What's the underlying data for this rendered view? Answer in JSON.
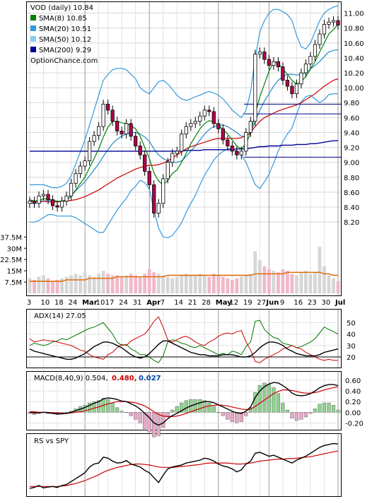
{
  "chart_data": [
    {
      "type": "candlestick",
      "ticker_label": "VOD (daily) 10.84",
      "watermark": "OptionChance.com",
      "legend_placement": "top-left",
      "legend": [
        {
          "label": "SMA(8) 10.85",
          "color": "#008000"
        },
        {
          "label": "SMA(20) 10.51",
          "color": "#3399dd"
        },
        {
          "label": "SMA(50) 10.12",
          "color": "#88ccee"
        },
        {
          "label": "SMA(200) 9.29",
          "color": "#000099"
        }
      ],
      "bollinger_color": "#3399dd",
      "sma50_color": "#cc0000",
      "sma200_color": "#000099",
      "price_ticks": [
        "11.00",
        "10.80",
        "10.60",
        "10.40",
        "10.20",
        "10.00",
        "9.80",
        "9.60",
        "9.40",
        "9.20",
        "9.00",
        "8.80",
        "8.60",
        "8.40",
        "8.20"
      ],
      "ylim": [
        8.05,
        11.1
      ],
      "x_labels": [
        "3",
        "10",
        "18",
        "24",
        "Mar",
        "10",
        "17",
        "24",
        "31",
        "Apr",
        "7",
        "14",
        "21",
        "28",
        "May",
        "12",
        "19",
        "27",
        "Jun",
        "9",
        "16",
        "23",
        "30",
        "Jul"
      ],
      "volume_ticks": [
        "37.5M",
        "30M",
        "22.5M",
        "15M",
        "7.5M"
      ],
      "volume_ylim": [
        0,
        40
      ],
      "close": [
        8.48,
        8.45,
        8.55,
        8.57,
        8.5,
        8.42,
        8.4,
        8.48,
        8.55,
        8.72,
        8.85,
        8.95,
        9.02,
        9.28,
        9.36,
        9.48,
        9.78,
        9.7,
        9.55,
        9.42,
        9.38,
        9.52,
        9.35,
        9.22,
        9.1,
        8.88,
        8.7,
        8.32,
        8.45,
        8.78,
        9.0,
        9.12,
        9.15,
        9.38,
        9.48,
        9.52,
        9.55,
        9.62,
        9.7,
        9.68,
        9.52,
        9.45,
        9.3,
        9.22,
        9.15,
        9.1,
        9.15,
        9.4,
        9.55,
        10.45,
        10.48,
        10.38,
        10.3,
        10.35,
        10.28,
        10.1,
        10.02,
        9.92,
        10.05,
        10.2,
        10.32,
        10.42,
        10.58,
        10.72,
        10.85,
        10.88,
        10.9,
        10.84
      ],
      "volume": [
        10,
        9,
        11,
        12,
        10,
        8,
        9,
        10,
        11,
        12,
        13,
        12,
        14,
        12,
        11,
        13,
        15,
        13,
        12,
        12,
        11,
        12,
        13,
        12,
        11,
        13,
        16,
        14,
        13,
        12,
        11,
        10,
        11,
        12,
        13,
        12,
        12,
        13,
        12,
        11,
        13,
        12,
        11,
        10,
        9,
        10,
        11,
        12,
        13,
        28,
        22,
        18,
        16,
        15,
        14,
        16,
        15,
        13,
        12,
        14,
        15,
        13,
        14,
        31,
        18,
        12,
        10,
        8
      ],
      "sma8": [
        8.5,
        8.48,
        8.49,
        8.51,
        8.51,
        8.49,
        8.48,
        8.48,
        8.49,
        8.55,
        8.63,
        8.72,
        8.8,
        8.93,
        9.05,
        9.18,
        9.34,
        9.47,
        9.55,
        9.55,
        9.53,
        9.52,
        9.49,
        9.45,
        9.35,
        9.2,
        9.05,
        8.86,
        8.75,
        8.7,
        8.76,
        8.85,
        8.9,
        9.0,
        9.12,
        9.25,
        9.35,
        9.45,
        9.52,
        9.56,
        9.54,
        9.5,
        9.44,
        9.38,
        9.3,
        9.22,
        9.18,
        9.25,
        9.4,
        9.65,
        9.88,
        10.05,
        10.22,
        10.35,
        10.33,
        10.25,
        10.18,
        10.1,
        10.05,
        10.08,
        10.15,
        10.25,
        10.35,
        10.48,
        10.6,
        10.72,
        10.78,
        10.85
      ],
      "bb_mid": [
        8.45,
        8.45,
        8.46,
        8.48,
        8.49,
        8.48,
        8.47,
        8.48,
        8.5,
        8.55,
        8.62,
        8.68,
        8.74,
        8.82,
        8.9,
        8.98,
        9.08,
        9.17,
        9.25,
        9.31,
        9.35,
        9.38,
        9.4,
        9.4,
        9.38,
        9.34,
        9.28,
        9.18,
        9.1,
        9.05,
        9.02,
        9.0,
        9.0,
        9.02,
        9.08,
        9.15,
        9.22,
        9.3,
        9.38,
        9.44,
        9.48,
        9.5,
        9.5,
        9.48,
        9.44,
        9.4,
        9.35,
        9.35,
        9.4,
        9.55,
        9.7,
        9.82,
        9.92,
        10.02,
        10.1,
        10.15,
        10.18,
        10.18,
        10.17,
        10.18,
        10.2,
        10.25,
        10.3,
        10.35,
        10.42,
        10.48,
        10.5,
        10.51
      ],
      "bb_up": [
        8.7,
        8.7,
        8.7,
        8.7,
        8.68,
        8.66,
        8.66,
        8.68,
        8.72,
        8.82,
        8.98,
        9.14,
        9.3,
        9.5,
        9.7,
        9.9,
        10.1,
        10.18,
        10.24,
        10.26,
        10.26,
        10.24,
        10.18,
        10.12,
        10.0,
        9.95,
        9.92,
        10.0,
        10.08,
        10.1,
        10.05,
        9.98,
        9.9,
        9.85,
        9.83,
        9.85,
        9.88,
        9.9,
        9.93,
        9.95,
        9.93,
        9.9,
        9.85,
        9.78,
        9.7,
        9.65,
        9.6,
        9.7,
        9.95,
        10.4,
        10.75,
        10.9,
        11.0,
        11.05,
        11.05,
        11.02,
        10.98,
        10.9,
        10.7,
        10.55,
        10.52,
        10.6,
        10.75,
        10.9,
        11.0,
        11.05,
        11.08,
        11.1
      ],
      "bb_lo": [
        8.2,
        8.2,
        8.22,
        8.26,
        8.3,
        8.3,
        8.28,
        8.28,
        8.28,
        8.28,
        8.26,
        8.22,
        8.18,
        8.14,
        8.1,
        8.06,
        8.06,
        8.16,
        8.26,
        8.36,
        8.44,
        8.52,
        8.62,
        8.68,
        8.76,
        8.73,
        8.64,
        8.36,
        8.12,
        8.0,
        7.99,
        8.02,
        8.1,
        8.19,
        8.33,
        8.45,
        8.56,
        8.7,
        8.83,
        8.93,
        9.03,
        9.1,
        9.15,
        9.18,
        9.18,
        9.15,
        9.1,
        9.0,
        8.85,
        8.7,
        8.65,
        8.74,
        8.84,
        8.99,
        9.15,
        9.28,
        9.38,
        9.46,
        9.64,
        9.81,
        9.88,
        9.9,
        9.85,
        9.8,
        9.84,
        9.91,
        9.92,
        9.92
      ],
      "sma50": [
        8.48,
        8.48,
        8.48,
        8.48,
        8.47,
        8.47,
        8.47,
        8.48,
        8.48,
        8.49,
        8.5,
        8.52,
        8.54,
        8.57,
        8.6,
        8.63,
        8.67,
        8.71,
        8.75,
        8.79,
        8.82,
        8.85,
        8.88,
        8.91,
        8.93,
        8.95,
        8.96,
        8.96,
        8.97,
        8.99,
        9.02,
        9.06,
        9.1,
        9.14,
        9.18,
        9.21,
        9.23,
        9.25,
        9.27,
        9.29,
        9.31,
        9.32,
        9.32,
        9.32,
        9.32,
        9.32,
        9.33,
        9.36,
        9.4,
        9.48,
        9.55,
        9.6,
        9.63,
        9.66,
        9.69,
        9.71,
        9.73,
        9.75,
        9.77,
        9.8,
        9.84,
        9.88,
        9.92,
        9.97,
        10.02,
        10.06,
        10.1,
        10.12
      ],
      "sma200": [
        9.15,
        9.15,
        9.15,
        9.15,
        9.15,
        9.15,
        9.15,
        9.15,
        9.15,
        9.15,
        9.15,
        9.15,
        9.15,
        9.15,
        9.15,
        9.15,
        9.15,
        9.15,
        9.15,
        9.15,
        9.15,
        9.15,
        9.15,
        9.15,
        9.15,
        9.15,
        9.15,
        9.15,
        9.15,
        9.15,
        9.15,
        9.15,
        9.15,
        9.15,
        9.16,
        9.16,
        9.16,
        9.16,
        9.17,
        9.17,
        9.17,
        9.17,
        9.17,
        9.17,
        9.17,
        9.18,
        9.18,
        9.18,
        9.19,
        9.2,
        9.21,
        9.21,
        9.22,
        9.22,
        9.22,
        9.23,
        9.23,
        9.23,
        9.24,
        9.24,
        9.24,
        9.25,
        9.25,
        9.26,
        9.27,
        9.28,
        9.29,
        9.29
      ],
      "vol_avg": [
        8,
        8,
        8,
        8,
        8,
        8,
        8,
        8,
        9,
        9,
        9,
        9,
        9,
        10,
        10,
        10,
        10,
        10,
        10,
        11,
        11,
        11,
        11,
        11,
        11,
        11,
        11,
        11,
        11,
        11,
        12,
        12,
        12,
        12,
        12,
        12,
        12,
        12,
        12,
        12,
        12,
        12,
        12,
        12,
        12,
        12,
        12,
        12,
        12,
        13,
        13,
        13,
        13,
        13,
        13,
        13,
        14,
        14,
        14,
        14,
        14,
        14,
        14,
        14,
        13,
        13,
        12,
        12
      ],
      "hlines": [
        9.78,
        9.65,
        9.07
      ]
    },
    {
      "type": "line",
      "label": "ADX(14) 27.05",
      "y_ticks": [
        "50",
        "40",
        "30",
        "20"
      ],
      "ylim": [
        12,
        57
      ],
      "adx": [
        27,
        25,
        24,
        23,
        22,
        21,
        20,
        19,
        18,
        18,
        19,
        21,
        23,
        26,
        29,
        31,
        33,
        33,
        32,
        30,
        28,
        25,
        22,
        20,
        19,
        20,
        23,
        27,
        31,
        34,
        34,
        32,
        30,
        28,
        26,
        24,
        23,
        22,
        22,
        21,
        21,
        21,
        22,
        22,
        22,
        21,
        20,
        20,
        21,
        24,
        28,
        31,
        33,
        33,
        32,
        30,
        27,
        25,
        23,
        22,
        21,
        21,
        21,
        22,
        24,
        25,
        26,
        27
      ],
      "plus_di": [
        30,
        32,
        31,
        30,
        31,
        33,
        34,
        36,
        35,
        37,
        39,
        41,
        43,
        45,
        46,
        48,
        50,
        45,
        40,
        33,
        30,
        31,
        27,
        25,
        22,
        22,
        20,
        17,
        15,
        21,
        33,
        35,
        34,
        32,
        31,
        29,
        28,
        30,
        28,
        26,
        24,
        22,
        23,
        22,
        25,
        24,
        22,
        29,
        33,
        51,
        52,
        44,
        40,
        37,
        36,
        32,
        31,
        30,
        28,
        29,
        31,
        33,
        36,
        41,
        46,
        44,
        42,
        40
      ],
      "minus_di": [
        36,
        33,
        34,
        35,
        34,
        34,
        33,
        32,
        31,
        30,
        28,
        26,
        25,
        22,
        20,
        19,
        18,
        22,
        24,
        28,
        31,
        30,
        34,
        36,
        38,
        40,
        45,
        51,
        55,
        46,
        35,
        33,
        35,
        37,
        38,
        36,
        33,
        31,
        30,
        33,
        35,
        38,
        40,
        41,
        40,
        42,
        43,
        33,
        26,
        16,
        15,
        18,
        20,
        22,
        24,
        27,
        28,
        30,
        28,
        27,
        24,
        22,
        20,
        18,
        17,
        18,
        17,
        17
      ],
      "colors": {
        "adx": "#000000",
        "plus_di": "#007700",
        "minus_di": "#cc0000"
      }
    },
    {
      "type": "line",
      "label": "MACD(8,40,9) 0.504,",
      "signal_label": "0.480,",
      "hist_label": "0.027",
      "y_ticks": [
        "0.60",
        "0.40",
        "0.20",
        "0.00",
        "-0.20"
      ],
      "ylim": [
        -0.3,
        0.68
      ],
      "macd": [
        0.0,
        -0.01,
        -0.01,
        0.0,
        -0.01,
        -0.02,
        -0.03,
        -0.03,
        -0.02,
        0.0,
        0.03,
        0.06,
        0.09,
        0.13,
        0.17,
        0.2,
        0.25,
        0.27,
        0.26,
        0.24,
        0.21,
        0.2,
        0.16,
        0.12,
        0.06,
        -0.02,
        -0.1,
        -0.2,
        -0.24,
        -0.2,
        -0.12,
        -0.06,
        -0.02,
        0.03,
        0.08,
        0.12,
        0.15,
        0.18,
        0.2,
        0.2,
        0.18,
        0.14,
        0.1,
        0.06,
        0.02,
        -0.01,
        -0.02,
        0.02,
        0.1,
        0.28,
        0.4,
        0.48,
        0.53,
        0.56,
        0.55,
        0.5,
        0.44,
        0.36,
        0.32,
        0.31,
        0.32,
        0.35,
        0.4,
        0.46,
        0.5,
        0.52,
        0.52,
        0.5
      ],
      "signal": [
        0.01,
        0.01,
        0.0,
        0.0,
        0.0,
        -0.01,
        -0.01,
        -0.02,
        -0.02,
        -0.01,
        0.0,
        0.01,
        0.03,
        0.05,
        0.08,
        0.1,
        0.13,
        0.16,
        0.18,
        0.2,
        0.2,
        0.2,
        0.19,
        0.18,
        0.15,
        0.12,
        0.07,
        0.01,
        -0.04,
        -0.07,
        -0.08,
        -0.08,
        -0.07,
        -0.05,
        -0.02,
        0.01,
        0.04,
        0.07,
        0.1,
        0.12,
        0.13,
        0.14,
        0.13,
        0.12,
        0.1,
        0.08,
        0.06,
        0.05,
        0.06,
        0.11,
        0.17,
        0.23,
        0.29,
        0.35,
        0.39,
        0.42,
        0.42,
        0.41,
        0.39,
        0.37,
        0.36,
        0.36,
        0.37,
        0.39,
        0.42,
        0.44,
        0.46,
        0.48
      ],
      "colors": {
        "macd": "#000000",
        "signal": "#cc0000",
        "hist_pos": "#8fd18f",
        "hist_neg": "#e6a8c6",
        "signal_label": "#cc0000",
        "hist_label": "#0044aa"
      }
    },
    {
      "type": "line",
      "label": "RS vs SPY",
      "rs": [
        0.08,
        0.1,
        0.14,
        0.09,
        0.11,
        0.12,
        0.1,
        0.14,
        0.16,
        0.22,
        0.28,
        0.34,
        0.4,
        0.52,
        0.58,
        0.6,
        0.72,
        0.7,
        0.64,
        0.6,
        0.61,
        0.65,
        0.58,
        0.55,
        0.52,
        0.45,
        0.4,
        0.3,
        0.2,
        0.35,
        0.48,
        0.52,
        0.54,
        0.56,
        0.6,
        0.62,
        0.64,
        0.66,
        0.7,
        0.68,
        0.64,
        0.58,
        0.54,
        0.52,
        0.48,
        0.42,
        0.46,
        0.58,
        0.64,
        0.8,
        0.82,
        0.78,
        0.74,
        0.76,
        0.72,
        0.68,
        0.64,
        0.6,
        0.66,
        0.7,
        0.74,
        0.8,
        0.86,
        0.92,
        0.96,
        0.98,
        1.0,
        0.99
      ],
      "rs_avg": [
        0.12,
        0.12,
        0.12,
        0.12,
        0.12,
        0.12,
        0.12,
        0.13,
        0.14,
        0.16,
        0.18,
        0.21,
        0.24,
        0.28,
        0.32,
        0.36,
        0.41,
        0.45,
        0.48,
        0.51,
        0.53,
        0.55,
        0.57,
        0.58,
        0.58,
        0.57,
        0.56,
        0.54,
        0.52,
        0.51,
        0.51,
        0.51,
        0.52,
        0.53,
        0.54,
        0.55,
        0.56,
        0.57,
        0.59,
        0.6,
        0.6,
        0.6,
        0.6,
        0.6,
        0.59,
        0.58,
        0.58,
        0.59,
        0.6,
        0.62,
        0.64,
        0.65,
        0.66,
        0.67,
        0.68,
        0.68,
        0.69,
        0.69,
        0.7,
        0.71,
        0.72,
        0.73,
        0.75,
        0.77,
        0.79,
        0.81,
        0.83,
        0.85
      ],
      "ylim": [
        -0.05,
        1.08
      ],
      "colors": {
        "rs": "#000000",
        "rs_avg": "#cc0000"
      }
    }
  ]
}
